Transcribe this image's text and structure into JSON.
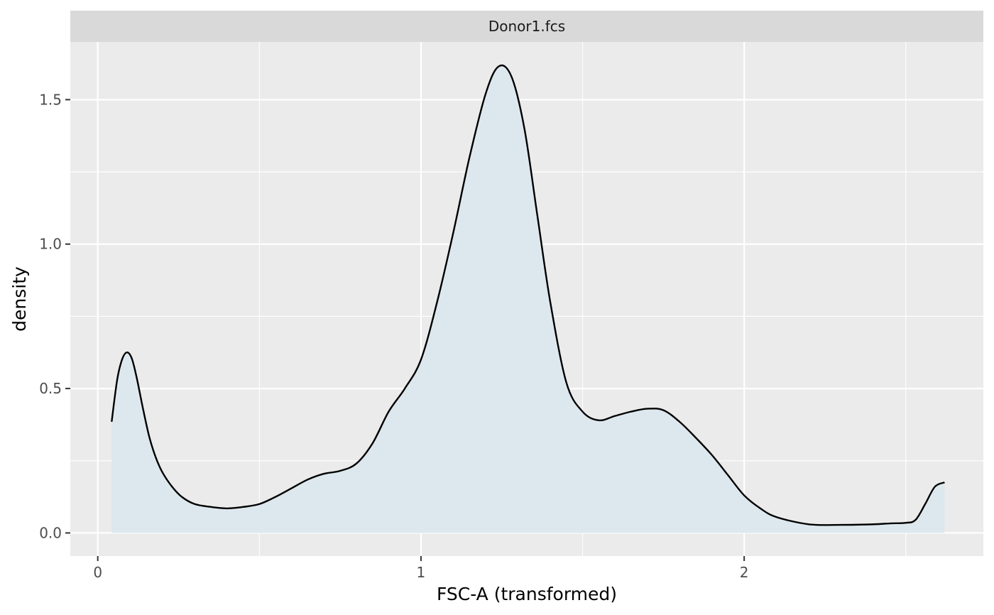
{
  "chart_data": {
    "type": "area",
    "facet_label": "Donor1.fcs",
    "xlabel": "FSC-A (transformed)",
    "ylabel": "density",
    "xlim": [
      -0.085,
      2.74
    ],
    "ylim": [
      -0.08,
      1.7
    ],
    "x_ticks": [
      0,
      1,
      2
    ],
    "x_tick_labels": [
      "0",
      "1",
      "2"
    ],
    "x_minor_ticks": [
      0.5,
      1.5,
      2.5
    ],
    "y_ticks": [
      0,
      0.5,
      1.0,
      1.5
    ],
    "y_tick_labels": [
      "0.0",
      "0.5",
      "1.0",
      "1.5"
    ],
    "y_minor_ticks": [
      0.25,
      0.75,
      1.25
    ],
    "grid": true,
    "fill_color": "#dde8ee",
    "line_color": "#000000",
    "panel_color": "#ebebeb",
    "strip_color": "#d9d9d9",
    "x": [
      0.043,
      0.06,
      0.075,
      0.09,
      0.105,
      0.12,
      0.14,
      0.16,
      0.18,
      0.2,
      0.23,
      0.26,
      0.3,
      0.35,
      0.4,
      0.45,
      0.5,
      0.55,
      0.6,
      0.65,
      0.7,
      0.75,
      0.8,
      0.85,
      0.9,
      0.95,
      1.0,
      1.05,
      1.1,
      1.15,
      1.2,
      1.24,
      1.28,
      1.32,
      1.36,
      1.4,
      1.45,
      1.5,
      1.55,
      1.6,
      1.65,
      1.7,
      1.75,
      1.8,
      1.85,
      1.9,
      1.95,
      2.0,
      2.05,
      2.1,
      2.2,
      2.3,
      2.4,
      2.45,
      2.5,
      2.53,
      2.56,
      2.59,
      2.62
    ],
    "y": [
      0.385,
      0.53,
      0.6,
      0.625,
      0.605,
      0.54,
      0.43,
      0.33,
      0.26,
      0.21,
      0.16,
      0.125,
      0.1,
      0.09,
      0.085,
      0.09,
      0.1,
      0.125,
      0.155,
      0.185,
      0.205,
      0.215,
      0.24,
      0.31,
      0.42,
      0.5,
      0.6,
      0.8,
      1.04,
      1.3,
      1.52,
      1.615,
      1.58,
      1.4,
      1.1,
      0.8,
      0.52,
      0.42,
      0.39,
      0.405,
      0.42,
      0.43,
      0.425,
      0.385,
      0.33,
      0.27,
      0.2,
      0.13,
      0.085,
      0.055,
      0.03,
      0.028,
      0.03,
      0.033,
      0.035,
      0.045,
      0.1,
      0.16,
      0.175
    ]
  }
}
